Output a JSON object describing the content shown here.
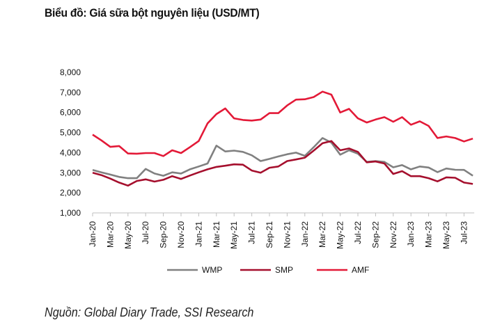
{
  "chart_data": {
    "type": "line",
    "title": "Biểu đồ: Giá sữa bột nguyên liệu (USD/MT)",
    "source": "Nguồn: Global Diary Trade, SSI Research",
    "xlabel": "",
    "ylabel": "",
    "ylim": [
      1000,
      8000
    ],
    "yticks": [
      "1,000",
      "2,000",
      "3,000",
      "4,000",
      "5,000",
      "6,000",
      "7,000",
      "8,000"
    ],
    "xtick_labels": [
      "Jan-20",
      "Mar-20",
      "May-20",
      "Jul-20",
      "Sep-20",
      "Nov-20",
      "Jan-21",
      "Mar-21",
      "May-21",
      "Jul-21",
      "Sep-21",
      "Nov-21",
      "Jan-22",
      "Mar-22",
      "May-22",
      "Jul-22",
      "Sep-22",
      "Nov-22",
      "Jan-23",
      "Mar-23",
      "May-23",
      "Jul-23"
    ],
    "x": [
      "Jan-20",
      "Feb-20",
      "Mar-20",
      "Apr-20",
      "May-20",
      "Jun-20",
      "Jul-20",
      "Aug-20",
      "Sep-20",
      "Oct-20",
      "Nov-20",
      "Dec-20",
      "Jan-21",
      "Feb-21",
      "Mar-21",
      "Apr-21",
      "May-21",
      "Jun-21",
      "Jul-21",
      "Aug-21",
      "Sep-21",
      "Oct-21",
      "Nov-21",
      "Dec-21",
      "Jan-22",
      "Feb-22",
      "Mar-22",
      "Apr-22",
      "May-22",
      "Jun-22",
      "Jul-22",
      "Aug-22",
      "Sep-22",
      "Oct-22",
      "Nov-22",
      "Dec-22",
      "Jan-23",
      "Feb-23",
      "Mar-23",
      "Apr-23",
      "May-23",
      "Jun-23",
      "Jul-23",
      "Aug-23"
    ],
    "grid": false,
    "legend": "bottom",
    "series": [
      {
        "name": "WMP",
        "color": "#808080",
        "values": [
          3140,
          3020,
          2910,
          2790,
          2730,
          2730,
          3190,
          2960,
          2850,
          3020,
          2960,
          3170,
          3310,
          3460,
          4350,
          4060,
          4100,
          4040,
          3870,
          3580,
          3690,
          3810,
          3920,
          4000,
          3840,
          4270,
          4730,
          4500,
          3900,
          4120,
          3950,
          3540,
          3580,
          3540,
          3270,
          3380,
          3170,
          3310,
          3260,
          3030,
          3210,
          3150,
          3140,
          2850
        ]
      },
      {
        "name": "SMP",
        "color": "#a50f2d",
        "values": [
          3000,
          2880,
          2710,
          2510,
          2360,
          2590,
          2670,
          2560,
          2650,
          2830,
          2690,
          2860,
          3020,
          3170,
          3290,
          3350,
          3420,
          3400,
          3110,
          3000,
          3250,
          3310,
          3580,
          3660,
          3750,
          4100,
          4470,
          4580,
          4120,
          4210,
          4040,
          3520,
          3560,
          3460,
          2940,
          3080,
          2830,
          2830,
          2730,
          2570,
          2770,
          2750,
          2510,
          2440
        ]
      },
      {
        "name": "AMF",
        "color": "#e31937",
        "values": [
          4900,
          4610,
          4290,
          4330,
          3960,
          3950,
          3980,
          3980,
          3830,
          4120,
          3980,
          4270,
          4580,
          5460,
          5920,
          6200,
          5710,
          5630,
          5600,
          5650,
          5970,
          5970,
          6350,
          6640,
          6660,
          6770,
          7040,
          6890,
          6000,
          6180,
          5710,
          5500,
          5650,
          5770,
          5540,
          5770,
          5390,
          5560,
          5330,
          4730,
          4810,
          4730,
          4560,
          4700
        ]
      }
    ]
  }
}
